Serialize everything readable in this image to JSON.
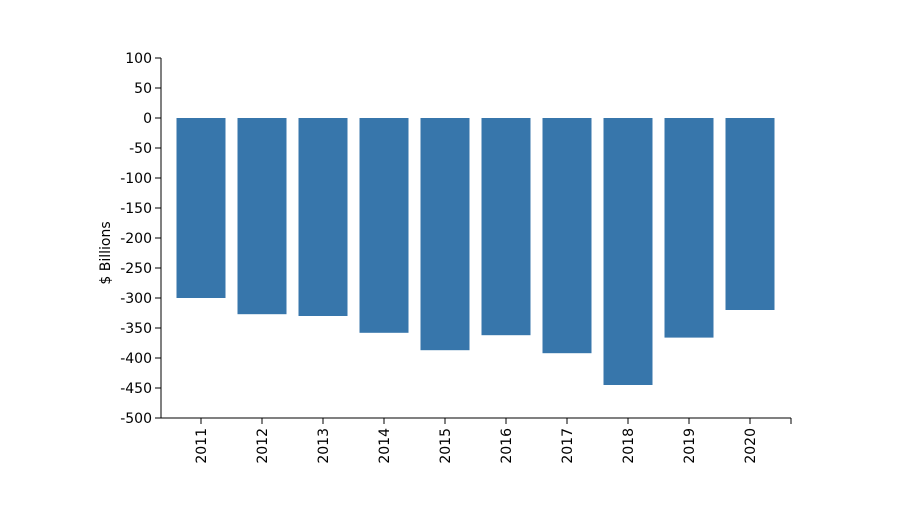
{
  "chart_data": {
    "type": "bar",
    "title": "",
    "xlabel": "",
    "ylabel": "$ Billions",
    "categories": [
      "2011",
      "2012",
      "2013",
      "2014",
      "2015",
      "2016",
      "2017",
      "2018",
      "2019",
      "2020"
    ],
    "values": [
      -300,
      -327,
      -330,
      -358,
      -387,
      -362,
      -392,
      -445,
      -366,
      -320
    ],
    "ylim": [
      -500,
      100
    ],
    "yticks": [
      100,
      50,
      0,
      -50,
      -100,
      -150,
      -200,
      -250,
      -300,
      -350,
      -400,
      -450,
      -500
    ],
    "ytick_labels": [
      "100",
      "50",
      "0",
      "-50",
      "-100",
      "-150",
      "-200",
      "-250",
      "-300",
      "-350",
      "-400",
      "-450",
      "-500"
    ],
    "bar_color": "#3776ab",
    "grid": false,
    "legend": false
  }
}
